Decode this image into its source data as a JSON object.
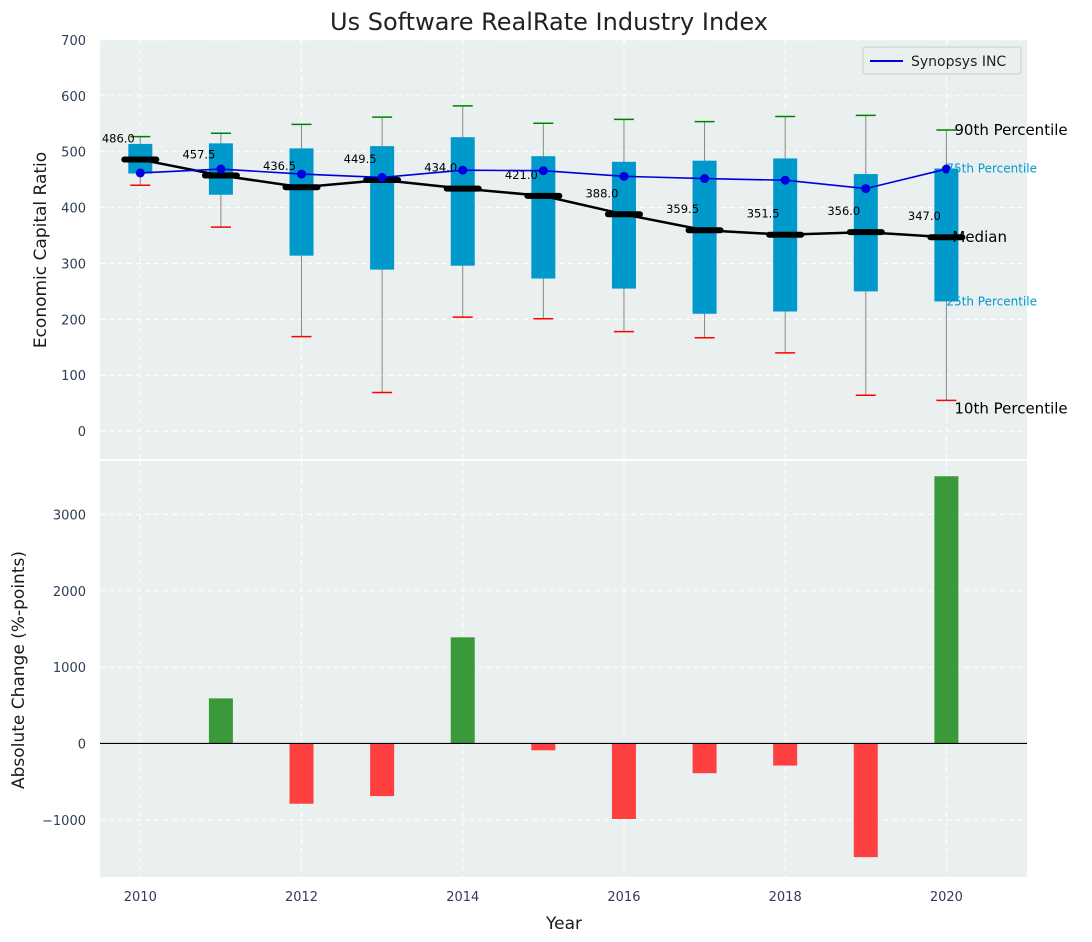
{
  "colors": {
    "panel_bg": "#eaeff0",
    "grid": "#ffffff",
    "box_fill": "#0099cc",
    "whisker": "#888888",
    "cap_high": "#008000",
    "cap_low": "#ff0000",
    "median": "#000000",
    "company_line": "#0000dd",
    "bar_positive": "#3a9a3a",
    "bar_negative": "#ff4040",
    "zero_line": "#000000"
  },
  "chart_data": [
    {
      "type": "box",
      "title": "Us Software RealRate Industry Index",
      "xlabel": "",
      "ylabel": "Economic Capital Ratio",
      "ylim": [
        -50,
        700
      ],
      "yticks": [
        0,
        100,
        200,
        300,
        400,
        500,
        600,
        700
      ],
      "grid": true,
      "legend_position": "top-right",
      "categories": [
        2010,
        2011,
        2012,
        2013,
        2014,
        2015,
        2016,
        2017,
        2018,
        2019,
        2020
      ],
      "boxes": [
        {
          "year": 2010,
          "p10": 440,
          "q1": 461,
          "median": 486.0,
          "q3": 514,
          "p90": 527
        },
        {
          "year": 2011,
          "p10": 365,
          "q1": 423,
          "median": 457.5,
          "q3": 515,
          "p90": 533
        },
        {
          "year": 2012,
          "p10": 169,
          "q1": 314,
          "median": 436.5,
          "q3": 506,
          "p90": 549
        },
        {
          "year": 2013,
          "p10": 69,
          "q1": 289,
          "median": 449.5,
          "q3": 510,
          "p90": 562
        },
        {
          "year": 2014,
          "p10": 204,
          "q1": 296,
          "median": 434.0,
          "q3": 526,
          "p90": 582
        },
        {
          "year": 2015,
          "p10": 201,
          "q1": 273,
          "median": 421.0,
          "q3": 492,
          "p90": 551
        },
        {
          "year": 2016,
          "p10": 178,
          "q1": 255,
          "median": 388.0,
          "q3": 482,
          "p90": 558
        },
        {
          "year": 2017,
          "p10": 167,
          "q1": 210,
          "median": 359.5,
          "q3": 484,
          "p90": 554
        },
        {
          "year": 2018,
          "p10": 140,
          "q1": 214,
          "median": 351.5,
          "q3": 488,
          "p90": 563
        },
        {
          "year": 2019,
          "p10": 64,
          "q1": 250,
          "median": 356.0,
          "q3": 460,
          "p90": 565
        },
        {
          "year": 2020,
          "p10": 55,
          "q1": 232,
          "median": 347.0,
          "q3": 470,
          "p90": 539
        }
      ],
      "median_labels": [
        "486.0",
        "457.5",
        "436.5",
        "449.5",
        "434.0",
        "421.0",
        "388.0",
        "359.5",
        "351.5",
        "356.0",
        "347.0"
      ],
      "series": [
        {
          "name": "Synopsys INC",
          "x": [
            2010,
            2011,
            2012,
            2013,
            2014,
            2015,
            2016,
            2017,
            2018,
            2019,
            2020
          ],
          "values": [
            462,
            469,
            460,
            454,
            467,
            466,
            456,
            452,
            449,
            434,
            469
          ]
        }
      ],
      "band_labels": {
        "p90": "90th Percentile",
        "q3": "75th Percentile",
        "median": "Median",
        "q1": "25th Percentile",
        "p10": "10th Percentile"
      }
    },
    {
      "type": "bar",
      "xlabel": "Year",
      "ylabel": "Absolute Change (%-points)",
      "ylim": [
        -1750,
        3700
      ],
      "yticks": [
        -1000,
        0,
        1000,
        2000,
        3000
      ],
      "ytick_labels": [
        "−1000",
        "0",
        "1000",
        "2000",
        "3000"
      ],
      "xlim": [
        2009.5,
        2021
      ],
      "xticks": [
        2010,
        2012,
        2014,
        2016,
        2018,
        2020
      ],
      "grid": true,
      "categories": [
        2011,
        2012,
        2013,
        2014,
        2015,
        2016,
        2017,
        2018,
        2019,
        2020
      ],
      "values": [
        590,
        -790,
        -690,
        1390,
        -90,
        -990,
        -390,
        -290,
        -1490,
        3500
      ]
    }
  ]
}
